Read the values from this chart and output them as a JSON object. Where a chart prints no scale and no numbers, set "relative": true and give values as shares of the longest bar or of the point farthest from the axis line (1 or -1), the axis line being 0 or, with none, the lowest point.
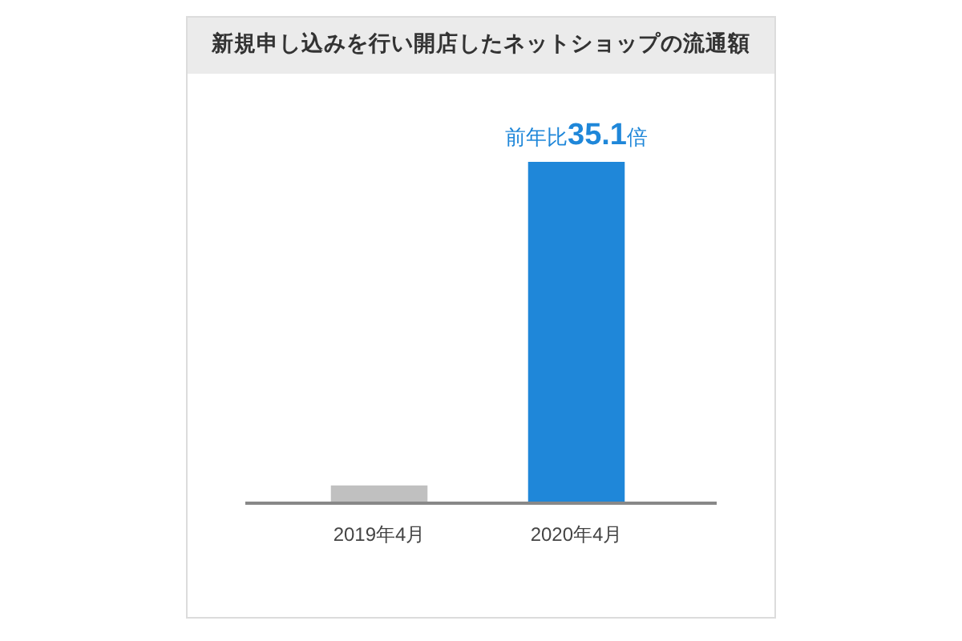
{
  "chart_data": {
    "type": "bar",
    "title": "新規申し込みを行い開店したネットショップの流通額",
    "categories": [
      "2019年4月",
      "2020年4月"
    ],
    "relative": true,
    "values": [
      0.052,
      1
    ],
    "colors": [
      "#c0c0c0",
      "#1f87d9"
    ],
    "annotations": [
      {
        "text": "前年比35.1倍",
        "x": "2020年4月",
        "y": 1
      }
    ]
  }
}
